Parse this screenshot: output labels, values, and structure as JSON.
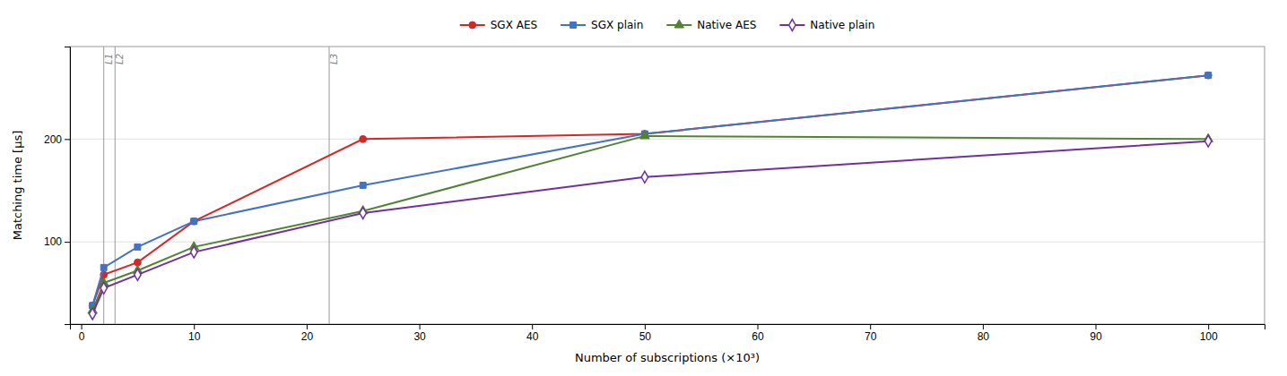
{
  "chart_data": {
    "type": "line",
    "x": [
      1,
      2,
      5,
      10,
      25,
      50,
      100
    ],
    "series": [
      {
        "name": "SGX AES",
        "color": "#d62728",
        "marker": "circle",
        "values": [
          38,
          68,
          80,
          120,
          200,
          205,
          262
        ]
      },
      {
        "name": "SGX plain",
        "color": "#4472c4",
        "marker": "square",
        "values": [
          38,
          75,
          95,
          120,
          155,
          205,
          262
        ]
      },
      {
        "name": "Native AES",
        "color": "#548235",
        "marker": "triangle",
        "values": [
          33,
          60,
          72,
          95,
          130,
          203,
          200
        ]
      },
      {
        "name": "Native plain",
        "color": "#7030a0",
        "marker": "diamond-open",
        "values": [
          30,
          55,
          68,
          90,
          128,
          163,
          198
        ]
      }
    ],
    "annotations": [
      {
        "x": 2,
        "text": "L1"
      },
      {
        "x": 3,
        "text": "L2"
      },
      {
        "x": 22,
        "text": "L3"
      }
    ],
    "x_label": "Number of subscriptions (×10³)",
    "y_label": "Matching time [μs]",
    "xlim": [
      -1,
      105
    ],
    "ylim": [
      20,
      290
    ],
    "xticks": [
      0,
      10,
      20,
      30,
      40,
      50,
      60,
      70,
      80,
      90,
      100
    ],
    "yticks": [
      100,
      200
    ],
    "grid": "y",
    "legend": "top"
  }
}
